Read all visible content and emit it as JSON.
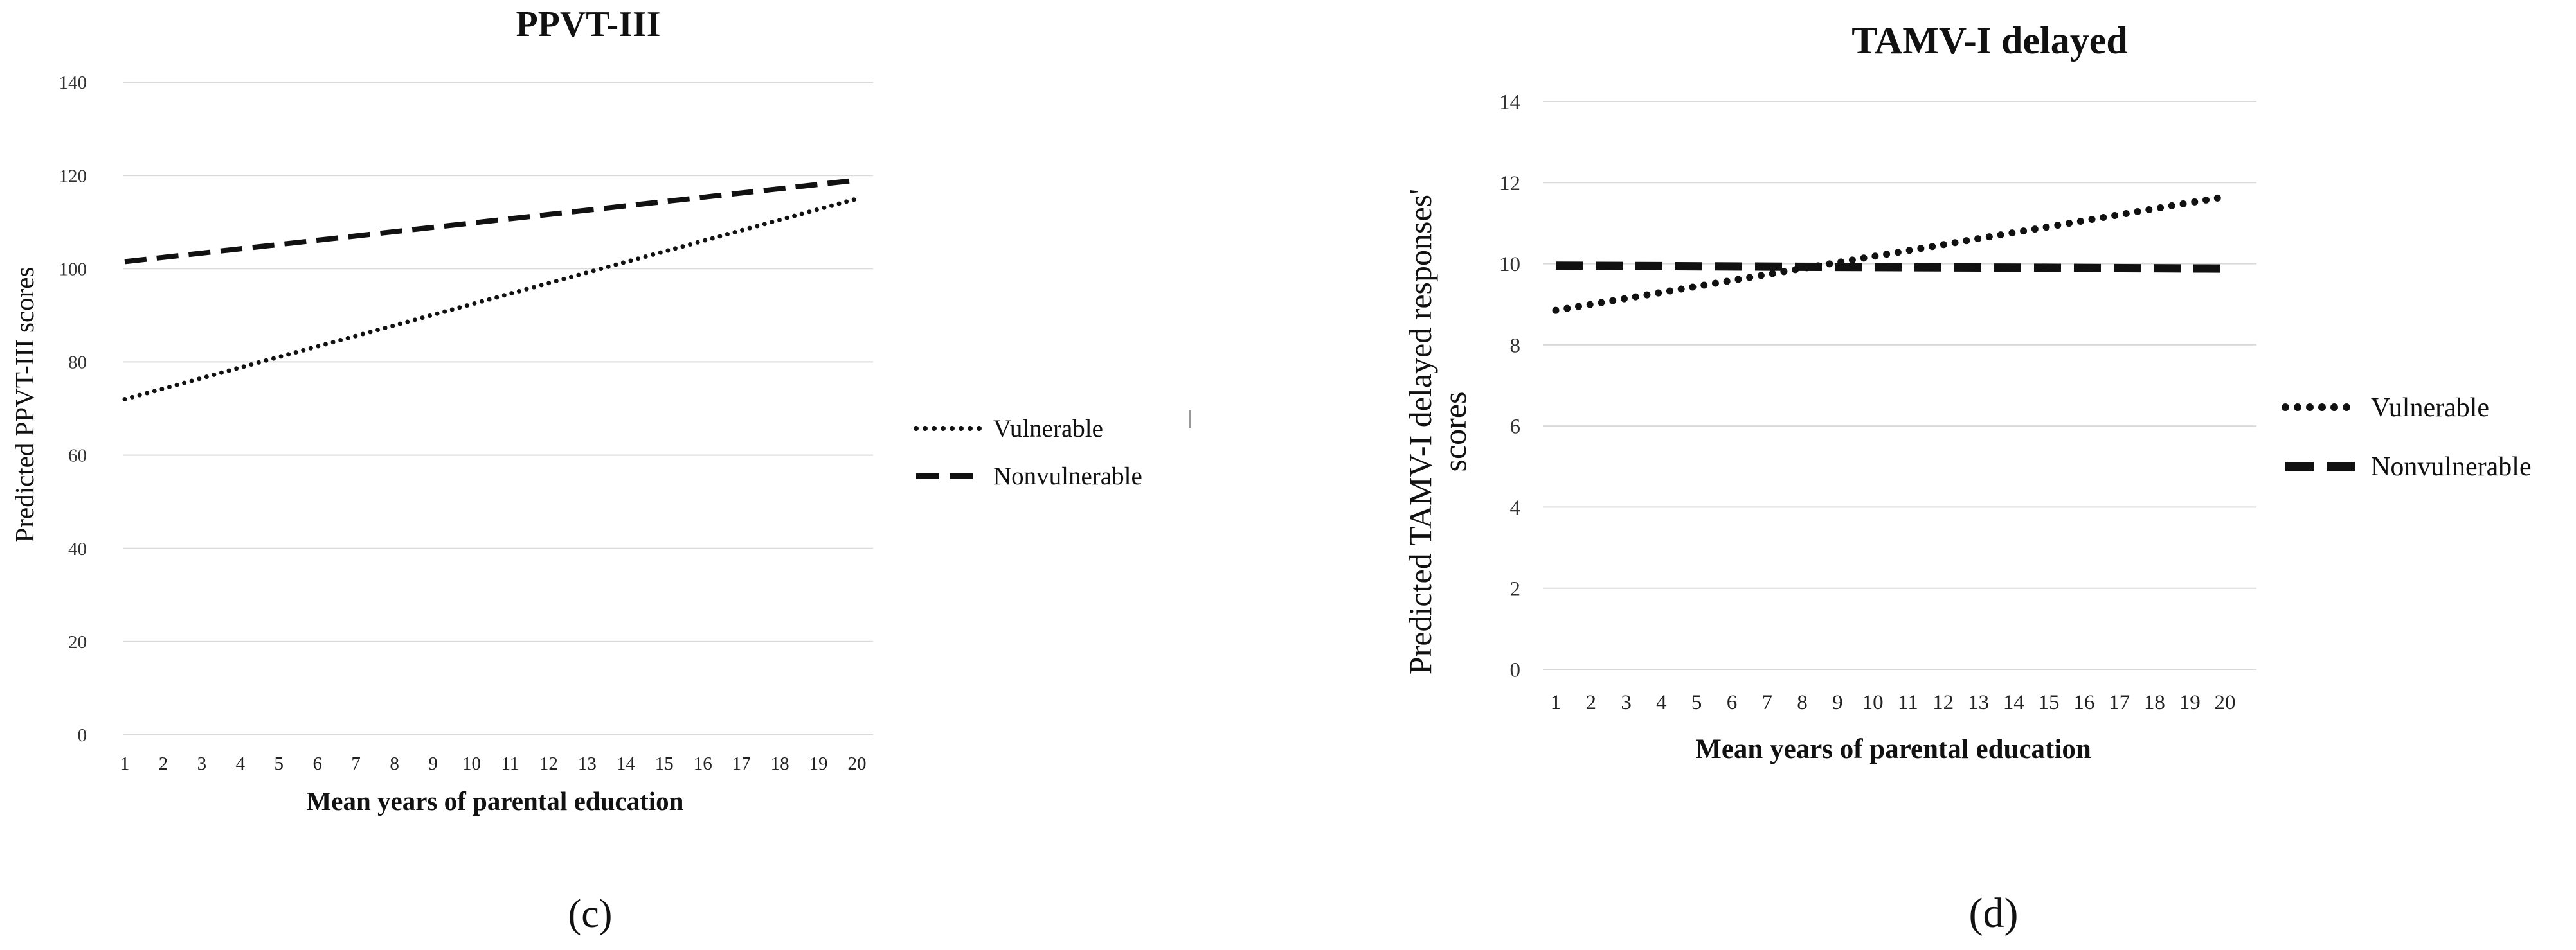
{
  "chart_data": [
    {
      "type": "line",
      "title": "PPVT-III",
      "xlabel": "Mean years of parental education",
      "ylabel": "Predicted PPVT-III scores",
      "x": [
        1,
        2,
        3,
        4,
        5,
        6,
        7,
        8,
        9,
        10,
        11,
        12,
        13,
        14,
        15,
        16,
        17,
        18,
        19,
        20
      ],
      "ylim": [
        0,
        140
      ],
      "yticks": [
        0,
        20,
        40,
        60,
        80,
        100,
        120,
        140
      ],
      "grid": true,
      "legend": "right",
      "series": [
        {
          "name": "Vulnerable",
          "style": "dotted",
          "start": 72,
          "end": 115
        },
        {
          "name": "Nonvulnerable",
          "style": "dashed",
          "start": 101.5,
          "end": 119
        }
      ],
      "caption": "(c)"
    },
    {
      "type": "line",
      "title": "TAMV-I delayed",
      "xlabel": "Mean years of parental education",
      "ylabel_lines": [
        "Predicted  TAMV-I delayed responses'",
        "scores"
      ],
      "x": [
        1,
        2,
        3,
        4,
        5,
        6,
        7,
        8,
        9,
        10,
        11,
        12,
        13,
        14,
        15,
        16,
        17,
        18,
        19,
        20
      ],
      "ylim": [
        0,
        14
      ],
      "yticks": [
        0,
        2,
        4,
        6,
        8,
        10,
        12,
        14
      ],
      "grid": true,
      "legend": "right",
      "series": [
        {
          "name": "Vulnerable",
          "style": "dotted",
          "start": 8.85,
          "end": 11.65
        },
        {
          "name": "Nonvulnerable",
          "style": "dashed",
          "start": 9.95,
          "end": 9.88
        }
      ],
      "caption": "(d)"
    }
  ]
}
